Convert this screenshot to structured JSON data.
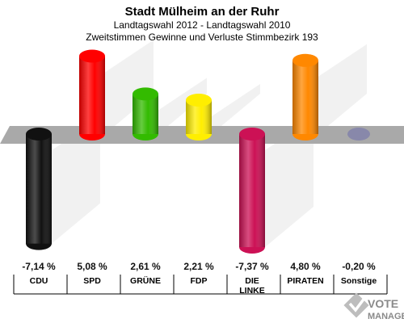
{
  "chart_data": {
    "type": "bar",
    "title": "Stadt Mülheim an der Ruhr",
    "subtitle_1": "Landtagswahl 2012 - Landtagswahl 2010",
    "subtitle_2": "Zweitstimmen Gewinne und Verluste Stimmbezirk 193",
    "categories": [
      {
        "line1": "CDU",
        "line2": ""
      },
      {
        "line1": "SPD",
        "line2": ""
      },
      {
        "line1": "GRÜNE",
        "line2": ""
      },
      {
        "line1": "FDP",
        "line2": ""
      },
      {
        "line1": "DIE",
        "line2": "LINKE"
      },
      {
        "line1": "PIRATEN",
        "line2": ""
      },
      {
        "line1": "Sonstige",
        "line2": ""
      }
    ],
    "values": [
      -7.14,
      5.08,
      2.61,
      2.21,
      -7.37,
      4.8,
      -0.2
    ],
    "value_labels": [
      "-7,14 %",
      "5,08 %",
      "2,61 %",
      "2,21 %",
      "-7,37 %",
      "4,80 %",
      "-0,20 %"
    ],
    "colors": [
      "#111111",
      "#ff0000",
      "#33bb00",
      "#ffee00",
      "#cc1155",
      "#ff8800",
      "#8888aa"
    ],
    "baseline_color": "#a9a9a9",
    "grid": false,
    "legend": "none"
  },
  "logo": {
    "line1": "VOTE",
    "line2": "MANAGER"
  }
}
